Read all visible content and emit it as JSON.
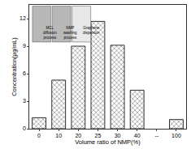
{
  "chart_data": {
    "type": "bar",
    "x_label": "Volume ratio of NMP(%)",
    "y_label": "Concentration(μg/mL)",
    "categories": [
      "0",
      "10",
      "20",
      "25",
      "30",
      "40",
      "--",
      "100"
    ],
    "values": [
      1.2,
      5.3,
      9.0,
      11.7,
      9.1,
      4.2,
      null,
      1.0
    ],
    "color": "#000000",
    "marker": "crosshatch",
    "ylim": [
      0,
      13.5
    ],
    "yticks": [
      0,
      3,
      6,
      9,
      12
    ],
    "grid": false,
    "annotations": [
      "MCL diffusion process",
      "NMP washing process",
      "Graphene dispersion"
    ]
  }
}
